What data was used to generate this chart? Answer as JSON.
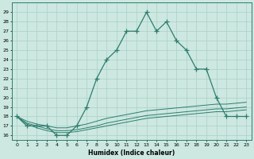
{
  "xlabel": "Humidex (Indice chaleur)",
  "x_values": [
    0,
    1,
    2,
    3,
    4,
    5,
    6,
    7,
    8,
    9,
    10,
    11,
    12,
    13,
    14,
    15,
    16,
    17,
    18,
    19,
    20,
    21,
    22,
    23
  ],
  "main_line": [
    18,
    17,
    17,
    17,
    16,
    16,
    17,
    19,
    22,
    24,
    25,
    27,
    27,
    29,
    27,
    28,
    26,
    25,
    23,
    23,
    20,
    18,
    18,
    18
  ],
  "flat_line1": [
    18,
    17.5,
    17.2,
    17.0,
    16.8,
    16.8,
    17.0,
    17.2,
    17.5,
    17.8,
    18.0,
    18.2,
    18.4,
    18.6,
    18.7,
    18.8,
    18.9,
    19.0,
    19.1,
    19.2,
    19.3,
    19.3,
    19.4,
    19.5
  ],
  "flat_line2": [
    18,
    17.3,
    17.0,
    16.7,
    16.5,
    16.5,
    16.6,
    16.8,
    17.0,
    17.3,
    17.5,
    17.7,
    17.9,
    18.1,
    18.2,
    18.3,
    18.4,
    18.5,
    18.6,
    18.7,
    18.8,
    18.8,
    18.9,
    19.0
  ],
  "flat_line3": [
    18,
    17.2,
    16.8,
    16.5,
    16.3,
    16.3,
    16.4,
    16.6,
    16.8,
    17.0,
    17.2,
    17.4,
    17.6,
    17.8,
    17.9,
    18.0,
    18.1,
    18.2,
    18.3,
    18.4,
    18.5,
    18.5,
    18.6,
    18.7
  ],
  "ylim": [
    15.5,
    30.0
  ],
  "yticks": [
    16,
    17,
    18,
    19,
    20,
    21,
    22,
    23,
    24,
    25,
    26,
    27,
    28,
    29
  ],
  "xticks": [
    0,
    1,
    2,
    3,
    4,
    5,
    6,
    7,
    8,
    9,
    10,
    11,
    12,
    13,
    14,
    15,
    16,
    17,
    18,
    19,
    20,
    21,
    22,
    23
  ],
  "line_color": "#2e7d6e",
  "bg_color": "#cce8e0",
  "grid_color": "#aacfc7"
}
